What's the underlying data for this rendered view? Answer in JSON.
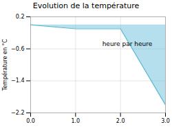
{
  "chart_data": {
    "type": "area",
    "title": "Evolution de la température",
    "ylabel": "Température en °C",
    "x": [
      0,
      1,
      2,
      3
    ],
    "values": [
      0.0,
      -0.1,
      -0.1,
      -2.0
    ],
    "color": "#5ab8d4",
    "xlim": [
      0,
      3
    ],
    "ylim": [
      -2.2,
      0.2
    ],
    "xticks": [
      0,
      1,
      2,
      3
    ],
    "yticks": [
      0.2,
      -0.6,
      -1.4,
      -2.2
    ],
    "grid": true,
    "annotations": [
      {
        "text": "heure par heure",
        "x": 2.15,
        "y": -0.42
      }
    ]
  }
}
